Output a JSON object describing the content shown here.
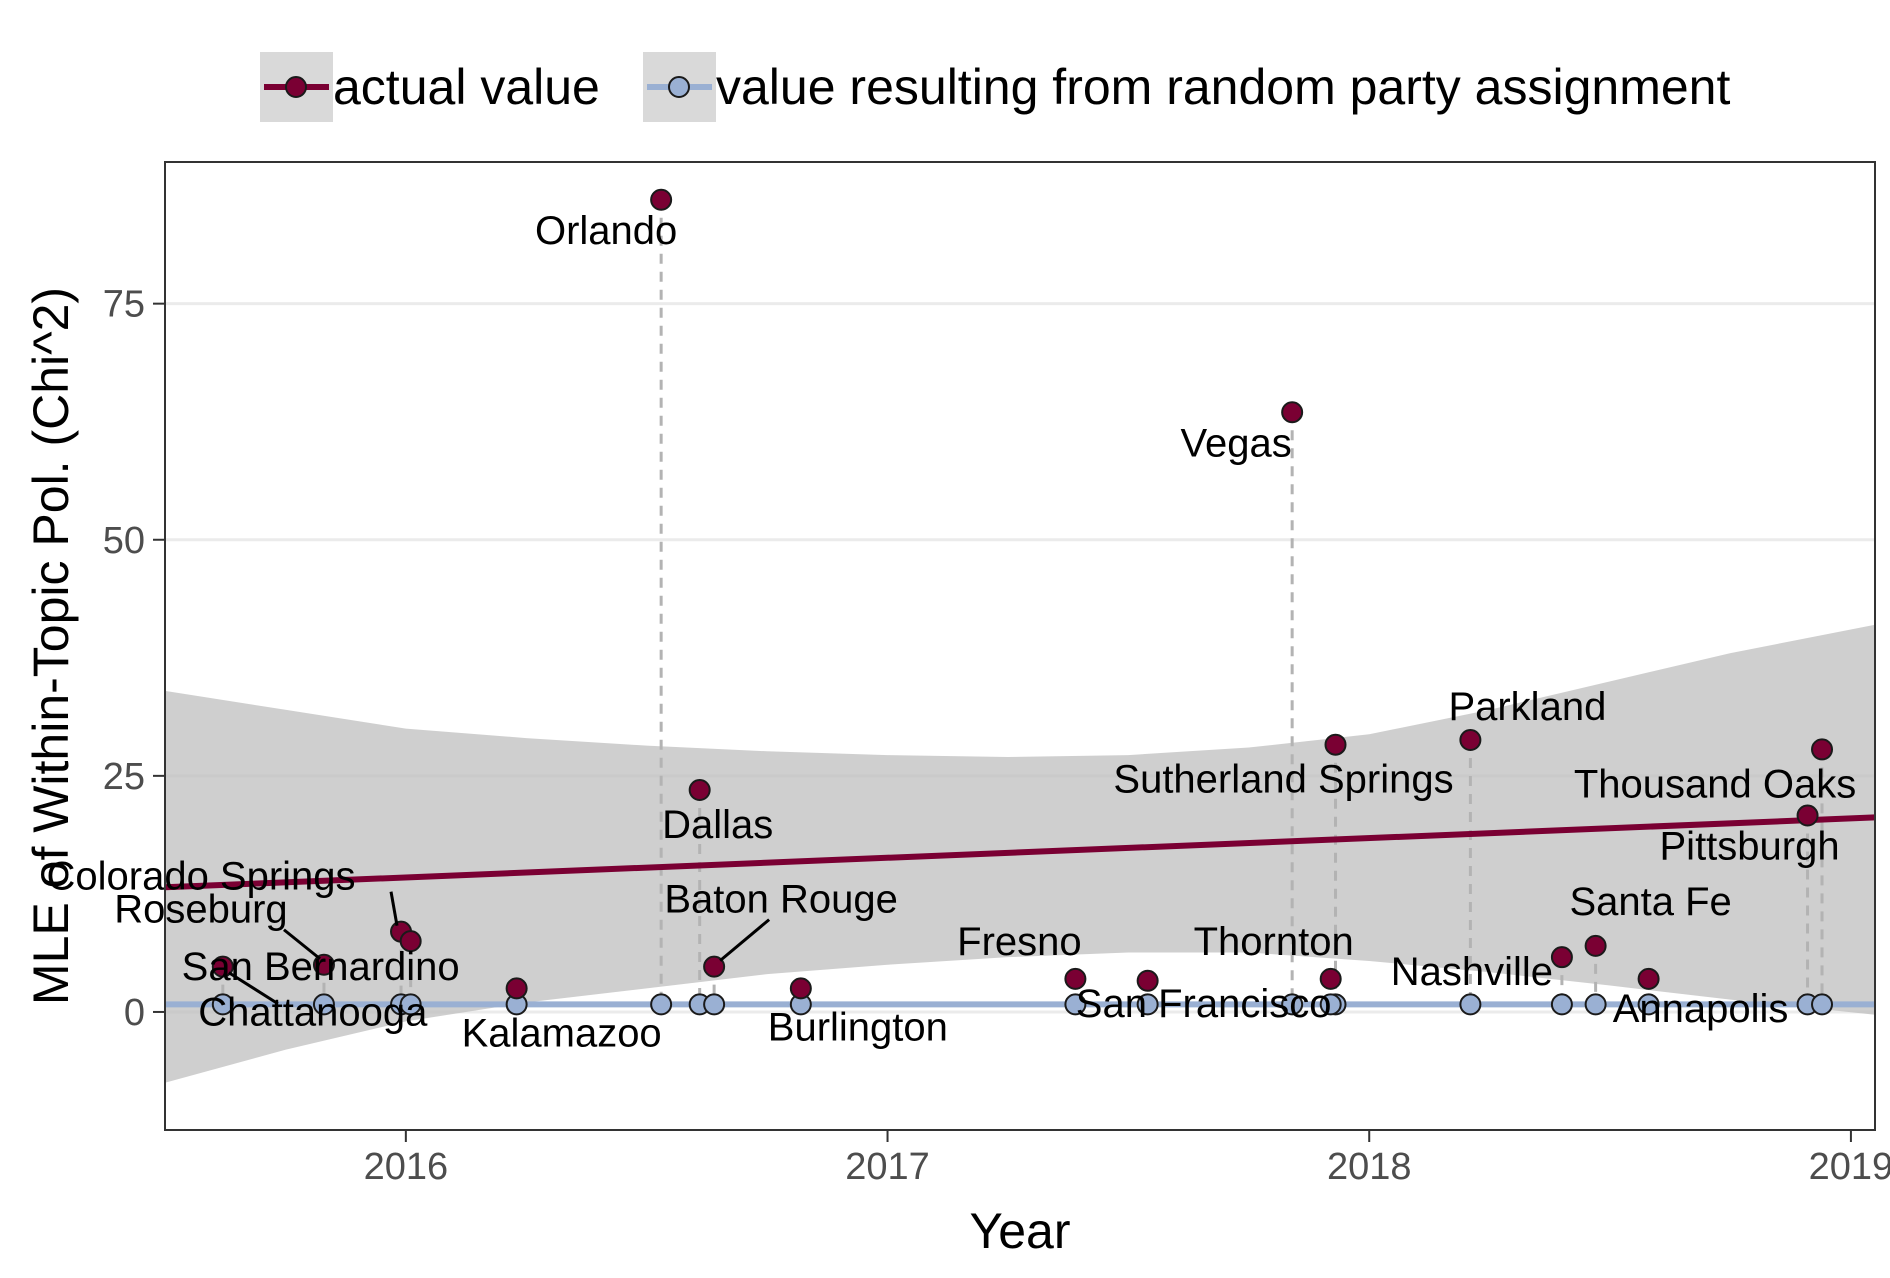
{
  "chart_data": {
    "type": "scatter",
    "xlabel": "Year",
    "ylabel": "MLE of Within-Topic Pol. (Chi^2)",
    "xlim": [
      2015.5,
      2019.05
    ],
    "ylim": [
      -12.5,
      90
    ],
    "x_ticks": [
      2016,
      2017,
      2018,
      2019
    ],
    "x_tick_labels": [
      "2016",
      "2017",
      "2018",
      "2019"
    ],
    "y_ticks": [
      0,
      25,
      50,
      75
    ],
    "y_tick_labels": [
      "0",
      "25",
      "50",
      "75"
    ],
    "grid": true,
    "legend_position": "top",
    "colors": {
      "actual": "#7a0033",
      "random": "#9ab0d3",
      "ribbon": "#bdbdbd",
      "guide": "#b3b3b3"
    },
    "series": [
      {
        "name": "actual value",
        "marker": "filled-circle",
        "color": "#7a0033"
      },
      {
        "name": "value resulting from random party assignment",
        "marker": "filled-circle",
        "color": "#9ab0d3"
      }
    ],
    "events": [
      {
        "label": "Roseburg",
        "x": 2015.83,
        "actual": 5.0,
        "random": 0.8
      },
      {
        "label": "Chattanooga",
        "x": 2015.62,
        "actual": 4.8,
        "random": 0.8
      },
      {
        "label": "Colorado Springs",
        "x": 2015.99,
        "actual": 8.5,
        "random": 0.8
      },
      {
        "label": "San Bernardino",
        "x": 2016.01,
        "actual": 7.5,
        "random": 0.8
      },
      {
        "label": "Kalamazoo",
        "x": 2016.23,
        "actual": 2.5,
        "random": 0.8
      },
      {
        "label": "Orlando",
        "x": 2016.53,
        "actual": 86.0,
        "random": 0.8
      },
      {
        "label": "Dallas",
        "x": 2016.61,
        "actual": 23.5,
        "random": 0.8
      },
      {
        "label": "Baton Rouge",
        "x": 2016.64,
        "actual": 4.8,
        "random": 0.8
      },
      {
        "label": "Burlington",
        "x": 2016.82,
        "actual": 2.5,
        "random": 0.8
      },
      {
        "label": "Fresno",
        "x": 2017.39,
        "actual": 3.5,
        "random": 0.8
      },
      {
        "label": "San Francisco",
        "x": 2017.54,
        "actual": 3.3,
        "random": 0.8
      },
      {
        "label": "Vegas",
        "x": 2017.84,
        "actual": 63.5,
        "random": 0.8
      },
      {
        "label": "Sutherland Springs",
        "x": 2017.93,
        "actual": 28.3,
        "random": 0.8
      },
      {
        "label": "Thornton",
        "x": 2017.92,
        "actual": 3.5,
        "random": 0.8
      },
      {
        "label": "Parkland",
        "x": 2018.21,
        "actual": 28.8,
        "random": 0.8
      },
      {
        "label": "Nashville",
        "x": 2018.4,
        "actual": 5.8,
        "random": 0.8
      },
      {
        "label": "Santa Fe",
        "x": 2018.47,
        "actual": 7.0,
        "random": 0.8
      },
      {
        "label": "Annapolis",
        "x": 2018.58,
        "actual": 3.5,
        "random": 0.8
      },
      {
        "label": "Pittsburgh",
        "x": 2018.91,
        "actual": 20.8,
        "random": 0.8
      },
      {
        "label": "Thousand Oaks",
        "x": 2018.94,
        "actual": 27.8,
        "random": 0.8
      }
    ],
    "trend_actual": {
      "x": [
        2015.5,
        2019.05
      ],
      "y": [
        13.2,
        20.6
      ]
    },
    "trend_random": {
      "x": [
        2015.5,
        2019.05
      ],
      "y": [
        0.8,
        0.8
      ]
    },
    "confidence_band": {
      "x": [
        2015.5,
        2015.75,
        2016.0,
        2016.25,
        2016.5,
        2016.75,
        2017.0,
        2017.25,
        2017.5,
        2017.75,
        2018.0,
        2018.25,
        2018.5,
        2018.75,
        2019.05
      ],
      "lower": [
        -7.5,
        -4.0,
        -1.0,
        1.0,
        2.5,
        4.0,
        5.0,
        5.8,
        6.3,
        6.3,
        5.4,
        4.2,
        2.8,
        1.3,
        -0.3
      ],
      "upper": [
        34.0,
        32.0,
        30.0,
        29.0,
        28.2,
        27.6,
        27.2,
        27.0,
        27.2,
        28.0,
        29.4,
        32.0,
        35.0,
        38.0,
        41.0
      ]
    }
  }
}
